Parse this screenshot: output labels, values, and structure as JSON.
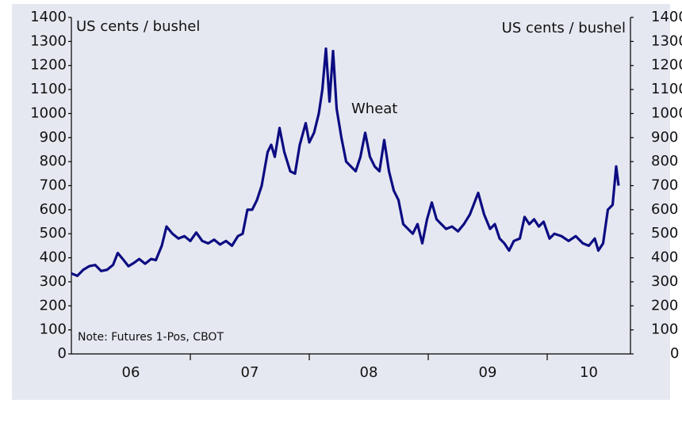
{
  "chart_data": {
    "type": "line",
    "axis_label_left": "US cents / bushel",
    "axis_label_right": "US cents / bushel",
    "annotation": "Wheat",
    "note": "Note: Futures 1-Pos, CBOT",
    "x": [
      2006.0,
      2006.05,
      2006.1,
      2006.15,
      2006.2,
      2006.25,
      2006.3,
      2006.35,
      2006.39,
      2006.44,
      2006.48,
      2006.53,
      2006.57,
      2006.62,
      2006.67,
      2006.71,
      2006.76,
      2006.8,
      2006.85,
      2006.9,
      2006.95,
      2007.0,
      2007.05,
      2007.1,
      2007.15,
      2007.2,
      2007.25,
      2007.3,
      2007.35,
      2007.4,
      2007.44,
      2007.48,
      2007.52,
      2007.56,
      2007.6,
      2007.65,
      2007.68,
      2007.71,
      2007.75,
      2007.79,
      2007.84,
      2007.88,
      2007.92,
      2007.97,
      2008.0,
      2008.04,
      2008.08,
      2008.11,
      2008.14,
      2008.17,
      2008.2,
      2008.23,
      2008.27,
      2008.31,
      2008.35,
      2008.39,
      2008.43,
      2008.47,
      2008.51,
      2008.55,
      2008.59,
      2008.63,
      2008.67,
      2008.71,
      2008.75,
      2008.79,
      2008.83,
      2008.87,
      2008.91,
      2008.95,
      2008.99,
      2009.03,
      2009.07,
      2009.11,
      2009.15,
      2009.2,
      2009.25,
      2009.3,
      2009.35,
      2009.42,
      2009.47,
      2009.52,
      2009.56,
      2009.6,
      2009.64,
      2009.68,
      2009.72,
      2009.77,
      2009.81,
      2009.85,
      2009.89,
      2009.93,
      2009.97,
      2010.02,
      2010.06,
      2010.12,
      2010.18,
      2010.24,
      2010.3,
      2010.35,
      2010.4,
      2010.43,
      2010.47,
      2010.51,
      2010.55,
      2010.58,
      2010.6
    ],
    "series": [
      {
        "name": "Wheat",
        "color": "#0c0c82",
        "values": [
          335,
          325,
          350,
          365,
          370,
          345,
          350,
          370,
          420,
          390,
          365,
          380,
          395,
          375,
          395,
          390,
          450,
          530,
          500,
          480,
          490,
          470,
          505,
          470,
          460,
          475,
          455,
          470,
          450,
          490,
          500,
          600,
          600,
          640,
          700,
          840,
          870,
          820,
          940,
          840,
          760,
          750,
          870,
          960,
          880,
          920,
          1000,
          1100,
          1270,
          1050,
          1260,
          1020,
          900,
          800,
          780,
          760,
          820,
          920,
          820,
          780,
          760,
          890,
          760,
          680,
          640,
          540,
          520,
          500,
          540,
          460,
          560,
          630,
          560,
          540,
          520,
          530,
          510,
          540,
          580,
          670,
          580,
          520,
          540,
          480,
          460,
          430,
          470,
          480,
          570,
          540,
          560,
          530,
          550,
          480,
          500,
          490,
          470,
          490,
          460,
          450,
          480,
          430,
          460,
          600,
          620,
          780,
          700
        ]
      }
    ],
    "xlim": [
      2006,
      2010.7
    ],
    "xticks": [
      {
        "value": 2006.5,
        "label": "06"
      },
      {
        "value": 2007.5,
        "label": "07"
      },
      {
        "value": 2008.5,
        "label": "08"
      },
      {
        "value": 2009.5,
        "label": "09"
      },
      {
        "value": 2010.35,
        "label": "10"
      }
    ],
    "xtick_marks": [
      2007,
      2008,
      2009,
      2010
    ],
    "ylim": [
      0,
      1400
    ],
    "yticks": [
      0,
      100,
      200,
      300,
      400,
      500,
      600,
      700,
      800,
      900,
      1000,
      1100,
      1200,
      1300,
      1400
    ],
    "y2lim": [
      0,
      1400
    ],
    "y2ticks": [
      0,
      100,
      200,
      300,
      400,
      500,
      600,
      700,
      800,
      900,
      1000,
      1100,
      1200,
      1300,
      1400
    ],
    "grid": false
  }
}
